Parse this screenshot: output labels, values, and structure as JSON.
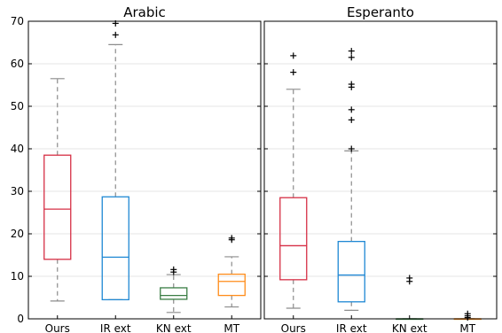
{
  "chart_data": [
    {
      "type": "box",
      "title": "Arabic",
      "categories": [
        "Ours",
        "IR ext",
        "KN ext",
        "MT"
      ],
      "ylim": [
        0,
        70
      ],
      "yticks": [
        0,
        10,
        20,
        30,
        40,
        50,
        60,
        70
      ],
      "grid": "horizontal",
      "boxes": [
        {
          "category": "Ours",
          "whisker_low": 4.2,
          "q1": 14.0,
          "median": 25.8,
          "q3": 38.5,
          "whisker_high": 56.5,
          "outliers": [],
          "color": "#d62f45"
        },
        {
          "category": "IR ext",
          "whisker_low": 4.5,
          "q1": 4.5,
          "median": 14.5,
          "q3": 28.7,
          "whisker_high": 64.5,
          "outliers": [
            66.8,
            69.5
          ],
          "color": "#1f88d4"
        },
        {
          "category": "KN ext",
          "whisker_low": 1.5,
          "q1": 4.6,
          "median": 5.5,
          "q3": 7.3,
          "whisker_high": 10.4,
          "outliers": [
            11.0,
            11.6
          ],
          "color": "#3a7d44"
        },
        {
          "category": "MT",
          "whisker_low": 2.8,
          "q1": 5.5,
          "median": 8.8,
          "q3": 10.5,
          "whisker_high": 14.6,
          "outliers": [
            18.6,
            19.0
          ],
          "color": "#ff8c1a"
        }
      ]
    },
    {
      "type": "box",
      "title": "Esperanto",
      "categories": [
        "Ours",
        "IR ext",
        "KN ext",
        "MT"
      ],
      "ylim": [
        0,
        70
      ],
      "yticks": [
        0,
        10,
        20,
        30,
        40,
        50,
        60,
        70
      ],
      "grid": "horizontal",
      "boxes": [
        {
          "category": "Ours",
          "whisker_low": 2.5,
          "q1": 9.2,
          "median": 17.2,
          "q3": 28.5,
          "whisker_high": 54.0,
          "outliers": [
            58.0,
            61.9
          ],
          "color": "#d62f45"
        },
        {
          "category": "IR ext",
          "whisker_low": 2.0,
          "q1": 4.0,
          "median": 10.3,
          "q3": 18.2,
          "whisker_high": 39.5,
          "outliers": [
            40.0,
            46.8,
            49.2,
            54.5,
            55.2,
            61.5,
            63.0
          ],
          "color": "#1f88d4"
        },
        {
          "category": "KN ext",
          "whisker_low": 0.0,
          "q1": 0.0,
          "median": 0.0,
          "q3": 0.0,
          "whisker_high": 0.0,
          "outliers": [
            8.8,
            9.6
          ],
          "color": "#3a7d44"
        },
        {
          "category": "MT",
          "whisker_low": 0.0,
          "q1": 0.0,
          "median": 0.0,
          "q3": 0.0,
          "whisker_high": 0.0,
          "outliers": [
            0.3,
            0.7,
            1.2
          ],
          "color": "#ff8c1a"
        }
      ]
    }
  ]
}
